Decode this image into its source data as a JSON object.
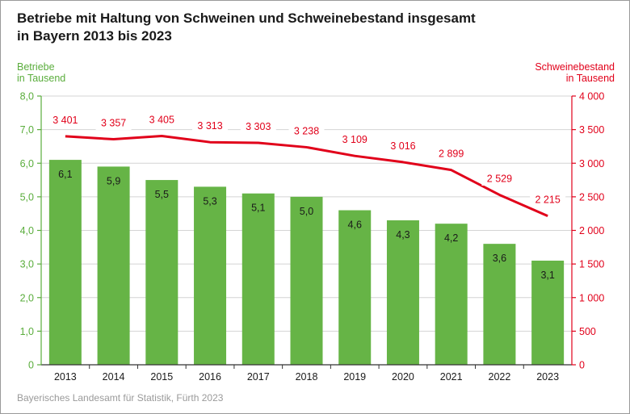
{
  "title_line1": "Betriebe mit Haltung von Schweinen und Schweinebestand insgesamt",
  "title_line2": "in Bayern 2013 bis 2023",
  "source": "Bayerisches Landesamt für Statistik, Fürth 2023",
  "colors": {
    "bars": "#66b446",
    "line": "#e1001a",
    "left_axis": "#5aad3c",
    "right_axis": "#e1001a",
    "grid": "#d4d4d4"
  },
  "chart_data": {
    "type": "bar",
    "categories": [
      "2013",
      "2014",
      "2015",
      "2016",
      "2017",
      "2018",
      "2019",
      "2020",
      "2021",
      "2022",
      "2023"
    ],
    "series": [
      {
        "name": "Betriebe",
        "type": "bar",
        "axis": "left",
        "values": [
          6.1,
          5.9,
          5.5,
          5.3,
          5.1,
          5.0,
          4.6,
          4.3,
          4.2,
          3.6,
          3.1
        ],
        "labels": [
          "6,1",
          "5,9",
          "5,5",
          "5,3",
          "5,1",
          "5,0",
          "4,6",
          "4,3",
          "4,2",
          "3,6",
          "3,1"
        ]
      },
      {
        "name": "Schweinebestand",
        "type": "line",
        "axis": "right",
        "values": [
          3401,
          3357,
          3405,
          3313,
          3303,
          3238,
          3109,
          3016,
          2899,
          2529,
          2215
        ],
        "labels": [
          "3 401",
          "3 357",
          "3 405",
          "3 313",
          "3 303",
          "3 238",
          "3 109",
          "3 016",
          "2 899",
          "2 529",
          "2 215"
        ]
      }
    ],
    "y_left": {
      "label_line1": "Betriebe",
      "label_line2": "in Tausend",
      "range": [
        0,
        8
      ],
      "ticks": [
        0,
        1,
        2,
        3,
        4,
        5,
        6,
        7,
        8
      ],
      "tick_labels": [
        "0",
        "1,0",
        "2,0",
        "3,0",
        "4,0",
        "5,0",
        "6,0",
        "7,0",
        "8,0"
      ]
    },
    "y_right": {
      "label_line1": "Schweinebestand",
      "label_line2": "in Tausend",
      "range": [
        0,
        4000
      ],
      "ticks": [
        0,
        500,
        1000,
        1500,
        2000,
        2500,
        3000,
        3500,
        4000
      ],
      "tick_labels": [
        "0",
        "500",
        "1 000",
        "1 500",
        "2 000",
        "2 500",
        "3 000",
        "3 500",
        "4 000"
      ]
    },
    "grid": true,
    "legend": "none"
  }
}
